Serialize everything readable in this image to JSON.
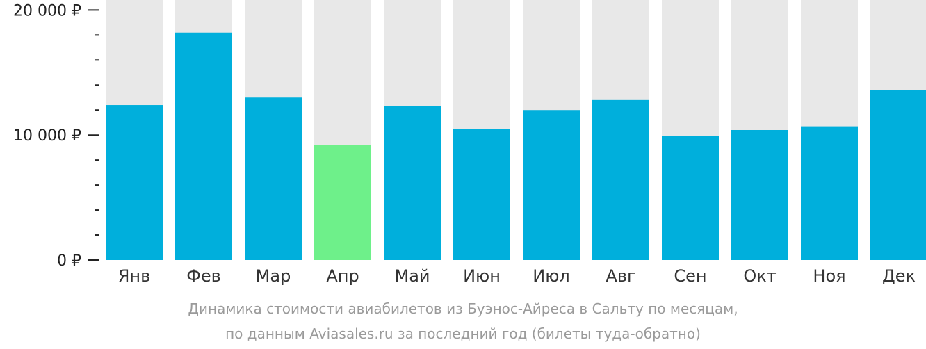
{
  "chart_data": {
    "type": "bar",
    "categories": [
      "Янв",
      "Фев",
      "Мар",
      "Апр",
      "Май",
      "Июн",
      "Июл",
      "Авг",
      "Сен",
      "Окт",
      "Ноя",
      "Дек"
    ],
    "values": [
      12400,
      18200,
      13000,
      9200,
      12300,
      10500,
      12000,
      12800,
      9900,
      10400,
      10700,
      13600
    ],
    "highlight_index": 3,
    "ylim": [
      0,
      20800
    ],
    "y_ticks": [
      {
        "value": 0,
        "label": "0 ₽"
      },
      {
        "value": 10000,
        "label": "10 000 ₽"
      },
      {
        "value": 20000,
        "label": "20 000 ₽"
      }
    ],
    "minor_tick_step": 2000,
    "grid": false,
    "title": "",
    "xlabel": "",
    "ylabel": ""
  },
  "caption": {
    "line1": "Динамика стоимости авиабилетов из Буэнос-Айреса в Сальту по месяцам,",
    "line2": "по данным Aviasales.ru за последний год (билеты туда-обратно)"
  },
  "colors": {
    "bar": "#00afdc",
    "highlight": "#6ef08a",
    "background_bar": "#e8e8e8",
    "axis": "#222222",
    "caption": "#9a9a9a"
  }
}
